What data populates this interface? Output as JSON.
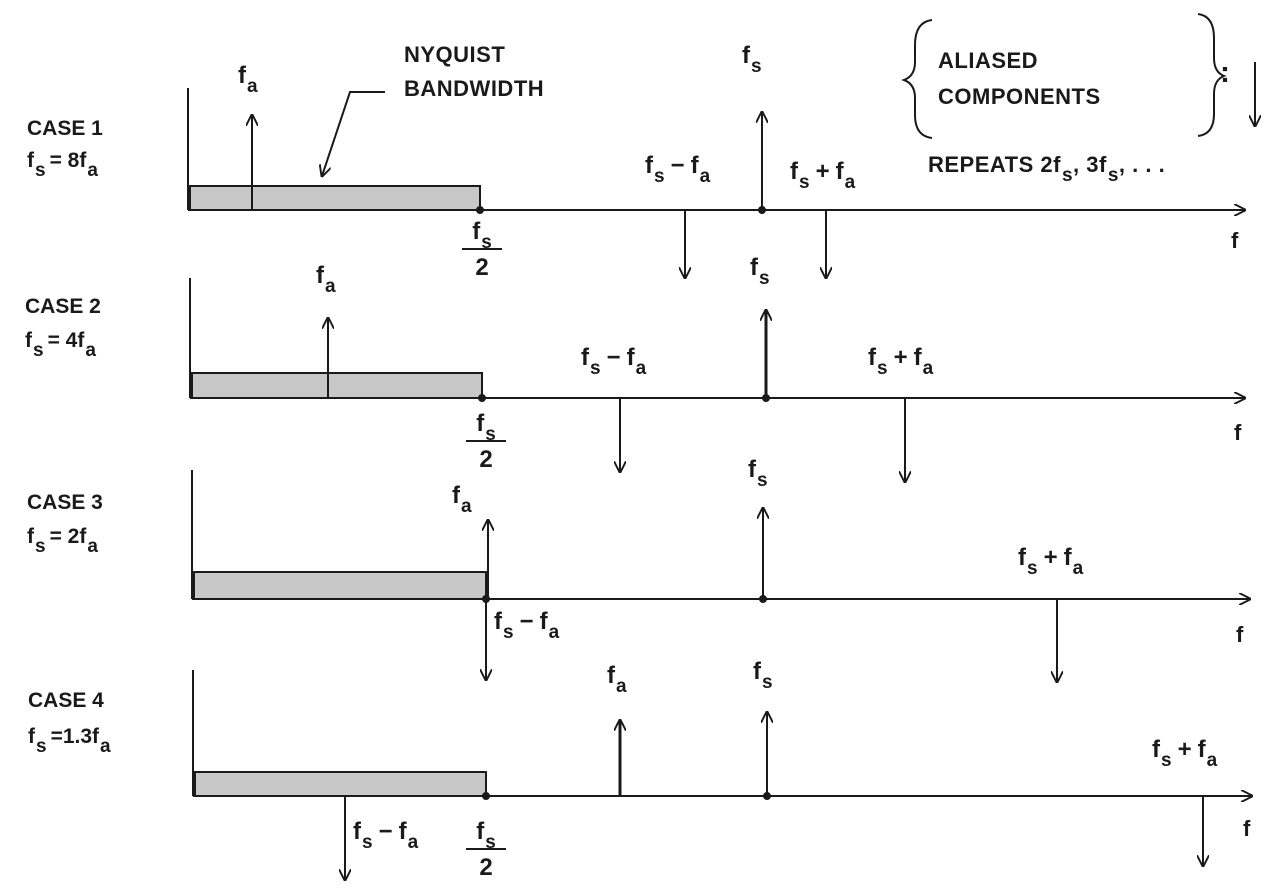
{
  "labels": {
    "nyquist": [
      "NYQUIST",
      "BANDWIDTH"
    ],
    "aliased": [
      "ALIASED",
      "COMPONENTS"
    ],
    "repeats": "REPEATS 2f",
    "repeats_mid": ", 3f",
    "repeats_tail": ", . . .",
    "axis_var": "f",
    "f": "f",
    "sub_s": "s",
    "sub_a": "a",
    "minus": "−",
    "plus": "+",
    "two": "2",
    "colon": ":"
  },
  "cases": [
    {
      "title": "CASE 1",
      "cond_mult": "= 8f"
    },
    {
      "title": "CASE 2",
      "cond_mult": "= 4f"
    },
    {
      "title": "CASE 3",
      "cond_mult": "= 2f"
    },
    {
      "title": "CASE 4",
      "cond_mult": "=1.3f"
    }
  ],
  "colors": {
    "ink": "#1a1a1a",
    "band_fill": "#c8c8c8",
    "background": "#ffffff"
  }
}
